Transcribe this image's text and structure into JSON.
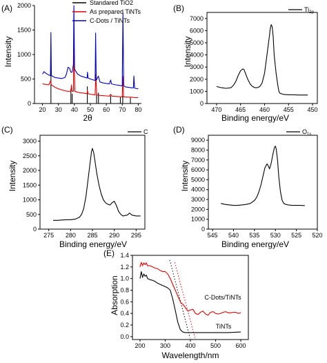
{
  "chart_data": [
    {
      "id": "A",
      "type": "line",
      "panel_label": "(A)",
      "xlabel": "2θ",
      "ylabel": "Intensity",
      "xlim": [
        15,
        82
      ],
      "ylim": [
        0,
        2000
      ],
      "xticks": [
        20,
        30,
        40,
        50,
        60,
        70,
        80
      ],
      "yticks": [
        0,
        500,
        1000,
        1500,
        2000
      ],
      "legend_position": "top-right",
      "series": [
        {
          "name": "Standared TiO2",
          "style": "sticks",
          "color": "#000000",
          "x": [
            25.3,
            37.8,
            38.6,
            48.1,
            53.9,
            55.1,
            62.7,
            68.8,
            70.3,
            75.1
          ],
          "y": [
            1000,
            300,
            200,
            350,
            220,
            220,
            160,
            130,
            150,
            120
          ]
        },
        {
          "name": "As prepared TiNTs",
          "color": "#e00000",
          "x": [
            20,
            22,
            24,
            25.2,
            25.4,
            26,
            28,
            30,
            32,
            34,
            36,
            37.8,
            38.2,
            38.5,
            39.4,
            39.7,
            40.3,
            42,
            44,
            46,
            48,
            48.1,
            48.6,
            50,
            52,
            53,
            53.4,
            54,
            56,
            58,
            60,
            62,
            62.7,
            63.5,
            66,
            68,
            70,
            70.4,
            70.8,
            72,
            74,
            76,
            78,
            80
          ],
          "y": [
            400,
            390,
            380,
            470,
            390,
            370,
            330,
            300,
            280,
            260,
            250,
            250,
            380,
            250,
            250,
            1120,
            250,
            230,
            220,
            210,
            200,
            270,
            200,
            190,
            180,
            175,
            600,
            175,
            165,
            160,
            155,
            150,
            190,
            150,
            145,
            140,
            135,
            550,
            135,
            135,
            130,
            130,
            120,
            120
          ]
        },
        {
          "name": "C-Dots / TiNTs",
          "color": "#0000c8",
          "x": [
            20,
            21,
            22,
            24,
            25,
            25.3,
            25.6,
            26,
            28,
            30,
            32,
            34,
            35,
            36,
            37,
            37.8,
            38.6,
            39.4,
            39.7,
            40.1,
            42,
            44,
            46,
            48,
            48.2,
            48.6,
            50,
            52,
            53,
            53.3,
            53.7,
            55,
            56,
            58,
            60,
            62,
            62.7,
            63.3,
            66,
            68,
            70,
            70.4,
            70.9,
            72,
            74,
            76,
            77,
            77.3,
            77.7,
            78,
            80
          ],
          "y": [
            600,
            650,
            620,
            580,
            570,
            1450,
            580,
            560,
            530,
            520,
            510,
            530,
            600,
            740,
            720,
            640,
            640,
            800,
            2000,
            700,
            600,
            560,
            540,
            520,
            640,
            520,
            500,
            480,
            470,
            1440,
            470,
            560,
            440,
            420,
            410,
            400,
            480,
            400,
            380,
            370,
            360,
            1850,
            360,
            340,
            330,
            320,
            320,
            560,
            320,
            310,
            300
          ]
        }
      ]
    },
    {
      "id": "B",
      "type": "line",
      "panel_label": "(B)",
      "xlabel": "Binding energy/eV",
      "ylabel": "Intensity",
      "xlim": [
        472,
        449
      ],
      "ylim": [
        0,
        7500
      ],
      "xticks": [
        470,
        465,
        460,
        455,
        450
      ],
      "yticks": [
        0,
        1000,
        2000,
        3000,
        4000,
        5000,
        6000,
        7000
      ],
      "annotation": "Ti2p",
      "series": [
        {
          "name": "Ti2p",
          "color": "#000000",
          "x": [
            470,
            469,
            468,
            467,
            466.5,
            466,
            465.5,
            465,
            464.5,
            464.3,
            464,
            463.5,
            463,
            462.5,
            462,
            461.5,
            461,
            460.5,
            460,
            459.5,
            459,
            458.8,
            458.6,
            458.4,
            458.2,
            458,
            457.6,
            457.2,
            457,
            456.8,
            456.5,
            456,
            455,
            454,
            453,
            452,
            451
          ],
          "y": [
            1400,
            1300,
            1250,
            1300,
            1500,
            1800,
            2300,
            2700,
            2850,
            2800,
            2500,
            2000,
            1600,
            1400,
            1300,
            1300,
            1400,
            1700,
            2500,
            4000,
            5500,
            6200,
            6500,
            6300,
            5500,
            4000,
            2500,
            1400,
            1000,
            850,
            800,
            750,
            720,
            720,
            700,
            700,
            700
          ]
        }
      ]
    },
    {
      "id": "C",
      "type": "line",
      "panel_label": "(C)",
      "xlabel": "Binding energy/eV",
      "ylabel": "Intensity",
      "xlim": [
        273,
        297
      ],
      "ylim": [
        0,
        3200
      ],
      "xticks": [
        275,
        280,
        285,
        290,
        295
      ],
      "yticks": [
        0,
        500,
        1000,
        1500,
        2000,
        2500,
        3000
      ],
      "annotation": "C",
      "series": [
        {
          "name": "C",
          "color": "#000000",
          "x": [
            276,
            277,
            278,
            279,
            280,
            281,
            282,
            282.5,
            283,
            283.5,
            284,
            284.5,
            284.8,
            285,
            285.3,
            285.6,
            286,
            286.5,
            287,
            287.5,
            288,
            288.5,
            289,
            289.5,
            290,
            290.5,
            291,
            291.5,
            292,
            293,
            293.5,
            294,
            295,
            296
          ],
          "y": [
            300,
            300,
            310,
            320,
            320,
            340,
            400,
            500,
            700,
            1100,
            1700,
            2300,
            2650,
            2750,
            2600,
            2300,
            1900,
            1500,
            1200,
            1000,
            900,
            850,
            820,
            900,
            950,
            800,
            600,
            500,
            450,
            480,
            550,
            480,
            450,
            450
          ]
        }
      ]
    },
    {
      "id": "D",
      "type": "line",
      "panel_label": "(D)",
      "xlabel": "Binding energy/eV",
      "ylabel": "Intensity",
      "xlim": [
        546,
        520
      ],
      "ylim": [
        0,
        9500
      ],
      "xticks": [
        545,
        540,
        535,
        530,
        525,
        520
      ],
      "yticks": [
        0,
        1000,
        2000,
        3000,
        4000,
        5000,
        6000,
        7000,
        8000,
        9000
      ],
      "annotation": "O1s",
      "series": [
        {
          "name": "O1s",
          "color": "#000000",
          "x": [
            543,
            542,
            541,
            540,
            539,
            538,
            537,
            536,
            535,
            534.5,
            534,
            533.5,
            533,
            532.5,
            532,
            531.7,
            531.4,
            531,
            530.6,
            530.2,
            530,
            529.8,
            529.5,
            529.2,
            528.8,
            528.4,
            528,
            527.5,
            527,
            526,
            525,
            524,
            523
          ],
          "y": [
            2600,
            2500,
            2450,
            2400,
            2400,
            2450,
            2500,
            2600,
            2900,
            3200,
            3700,
            4400,
            5300,
            6200,
            6600,
            6400,
            6100,
            6700,
            7600,
            8300,
            8400,
            8100,
            7000,
            5300,
            3800,
            2900,
            2600,
            2500,
            2450,
            2400,
            2400,
            2400,
            2380
          ]
        }
      ]
    },
    {
      "id": "E",
      "type": "line",
      "panel_label": "(E)",
      "xlabel": "Wavelength/nm",
      "ylabel": "Absorption",
      "xlim": [
        170,
        630
      ],
      "ylim": [
        -0.05,
        1.4
      ],
      "xticks": [
        200,
        300,
        400,
        500,
        600
      ],
      "yticks": [
        0.0,
        0.2,
        0.4,
        0.6,
        0.8,
        1.0,
        1.2,
        1.4
      ],
      "ytick_labels": [
        "0.0",
        "0.2",
        "0.4",
        "0.6",
        "0.8",
        "1.0",
        "1.2",
        "1.4"
      ],
      "series": [
        {
          "name": "C-Dots/TiNTs",
          "color": "#e00000",
          "x": [
            200,
            205,
            210,
            215,
            220,
            225,
            230,
            240,
            250,
            260,
            270,
            280,
            290,
            300,
            310,
            320,
            330,
            340,
            345,
            350,
            355,
            360,
            365,
            370,
            380,
            390,
            400,
            410,
            420,
            430,
            440,
            450,
            460,
            470,
            480,
            490,
            500,
            510,
            520,
            530,
            540,
            550,
            560,
            570,
            580,
            590,
            600
          ],
          "y": [
            1.2,
            1.28,
            1.22,
            1.27,
            1.24,
            1.27,
            1.22,
            1.22,
            1.2,
            1.18,
            1.17,
            1.14,
            1.12,
            1.12,
            1.08,
            1.0,
            0.9,
            0.8,
            0.75,
            0.7,
            0.65,
            0.6,
            0.57,
            0.56,
            0.5,
            0.44,
            0.46,
            0.47,
            0.4,
            0.38,
            0.42,
            0.44,
            0.39,
            0.37,
            0.42,
            0.43,
            0.4,
            0.39,
            0.4,
            0.42,
            0.43,
            0.41,
            0.41,
            0.42,
            0.42,
            0.4,
            0.41
          ]
        },
        {
          "name": "TiNTs",
          "color": "#000000",
          "x": [
            200,
            205,
            210,
            215,
            220,
            225,
            230,
            240,
            250,
            260,
            270,
            280,
            290,
            300,
            310,
            320,
            330,
            340,
            350,
            360,
            370,
            380,
            390,
            400,
            420,
            450,
            500,
            550,
            600
          ],
          "y": [
            1.0,
            1.12,
            1.02,
            1.08,
            1.04,
            1.06,
            1.0,
            0.98,
            0.97,
            0.95,
            0.92,
            0.9,
            0.88,
            0.86,
            0.84,
            0.8,
            0.65,
            0.45,
            0.25,
            0.12,
            0.08,
            0.07,
            0.07,
            0.07,
            0.07,
            0.07,
            0.07,
            0.07,
            0.08
          ]
        }
      ],
      "tangent_lines": [
        {
          "color": "#000000",
          "style": "dotted",
          "x": [
            318,
            398
          ],
          "y": [
            1.32,
            -0.02
          ]
        },
        {
          "color": "#e00000",
          "style": "dotted",
          "x": [
            338,
            418
          ],
          "y": [
            1.28,
            -0.02
          ]
        }
      ],
      "annotations": [
        {
          "text": "C-Dots/TiNTs",
          "x": 520,
          "y": 0.62
        },
        {
          "text": "TiNTs",
          "x": 530,
          "y": 0.15
        }
      ]
    }
  ]
}
